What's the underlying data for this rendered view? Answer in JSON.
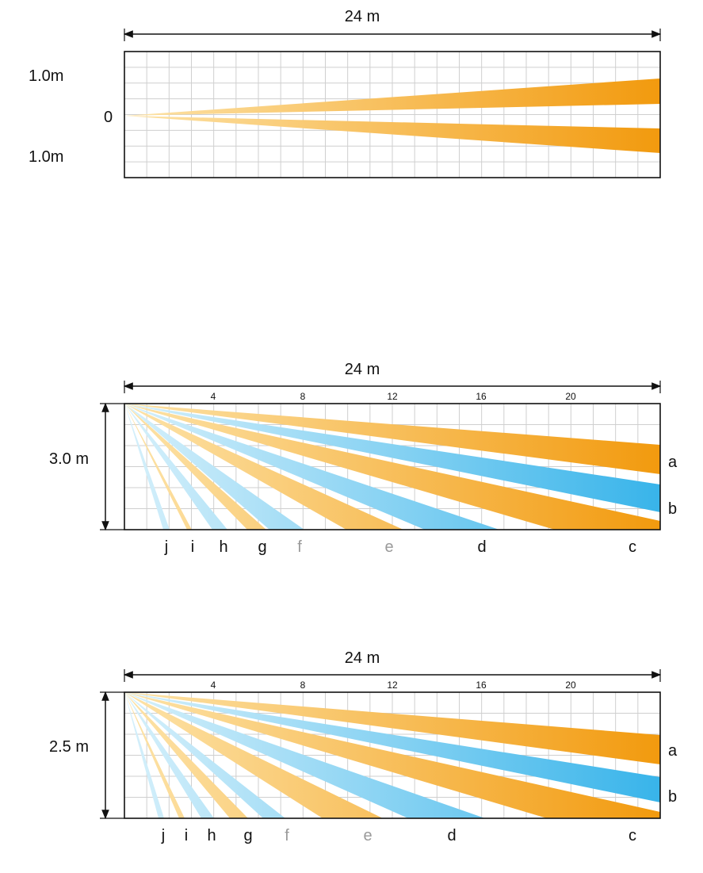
{
  "colors": {
    "orange_dark": "#f29a0e",
    "orange_light": "#fbd88a",
    "blue_dark": "#38b4ea",
    "blue_light": "#bde6f9",
    "grid": "#c8c8c8",
    "frame": "#111111",
    "dim_label": "#9a9a9a"
  },
  "top": {
    "width_label": "24 m",
    "upper_label": "1.0m",
    "center_label": "0",
    "lower_label": "1.0m"
  },
  "middle": {
    "width_label": "24 m",
    "height_label": "3.0 m",
    "ticks": [
      "4",
      "8",
      "12",
      "16",
      "20"
    ],
    "side_labels": [
      "a",
      "b"
    ],
    "bottom_labels": [
      "j",
      "i",
      "h",
      "g",
      "f",
      "e",
      "d",
      "c"
    ]
  },
  "bottom": {
    "width_label": "24 m",
    "height_label": "2.5 m",
    "ticks": [
      "4",
      "8",
      "12",
      "16",
      "20"
    ],
    "side_labels": [
      "a",
      "b"
    ],
    "bottom_labels": [
      "j",
      "i",
      "h",
      "g",
      "f",
      "e",
      "d",
      "c"
    ]
  }
}
